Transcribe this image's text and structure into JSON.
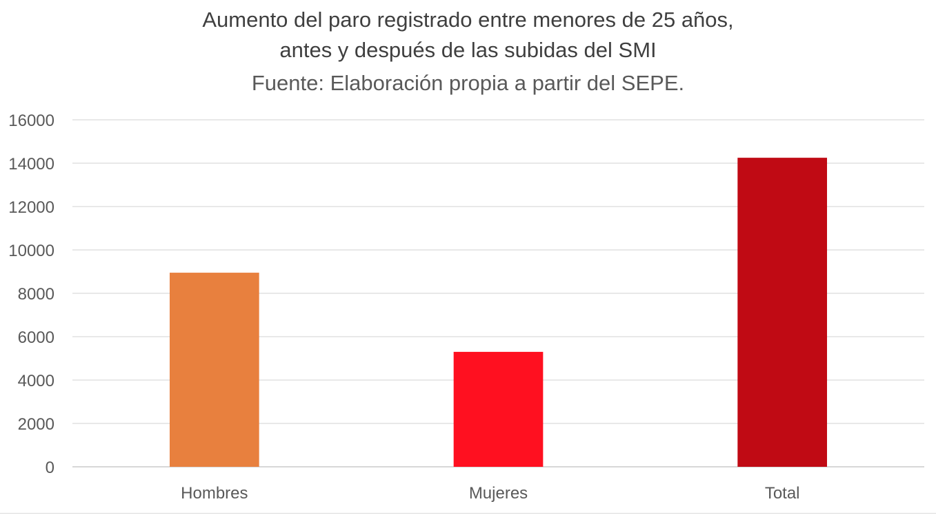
{
  "chart_data": {
    "type": "bar",
    "title_lines": [
      "Aumento del paro registrado entre menores de 25 años,",
      "antes y después de las subidas del SMI"
    ],
    "subtitle": "Fuente: Elaboración propia a partir del SEPE.",
    "categories": [
      "Hombres",
      "Mujeres",
      "Total"
    ],
    "values": [
      8950,
      5300,
      14250
    ],
    "colors": [
      "#E8803E",
      "#FF1020",
      "#C00A14"
    ],
    "yticks": [
      "0",
      "2000",
      "4000",
      "6000",
      "8000",
      "10000",
      "12000",
      "14000",
      "16000"
    ],
    "ylim": [
      0,
      16000
    ],
    "grid": true,
    "legend": "none",
    "xlabel": "",
    "ylabel": ""
  }
}
